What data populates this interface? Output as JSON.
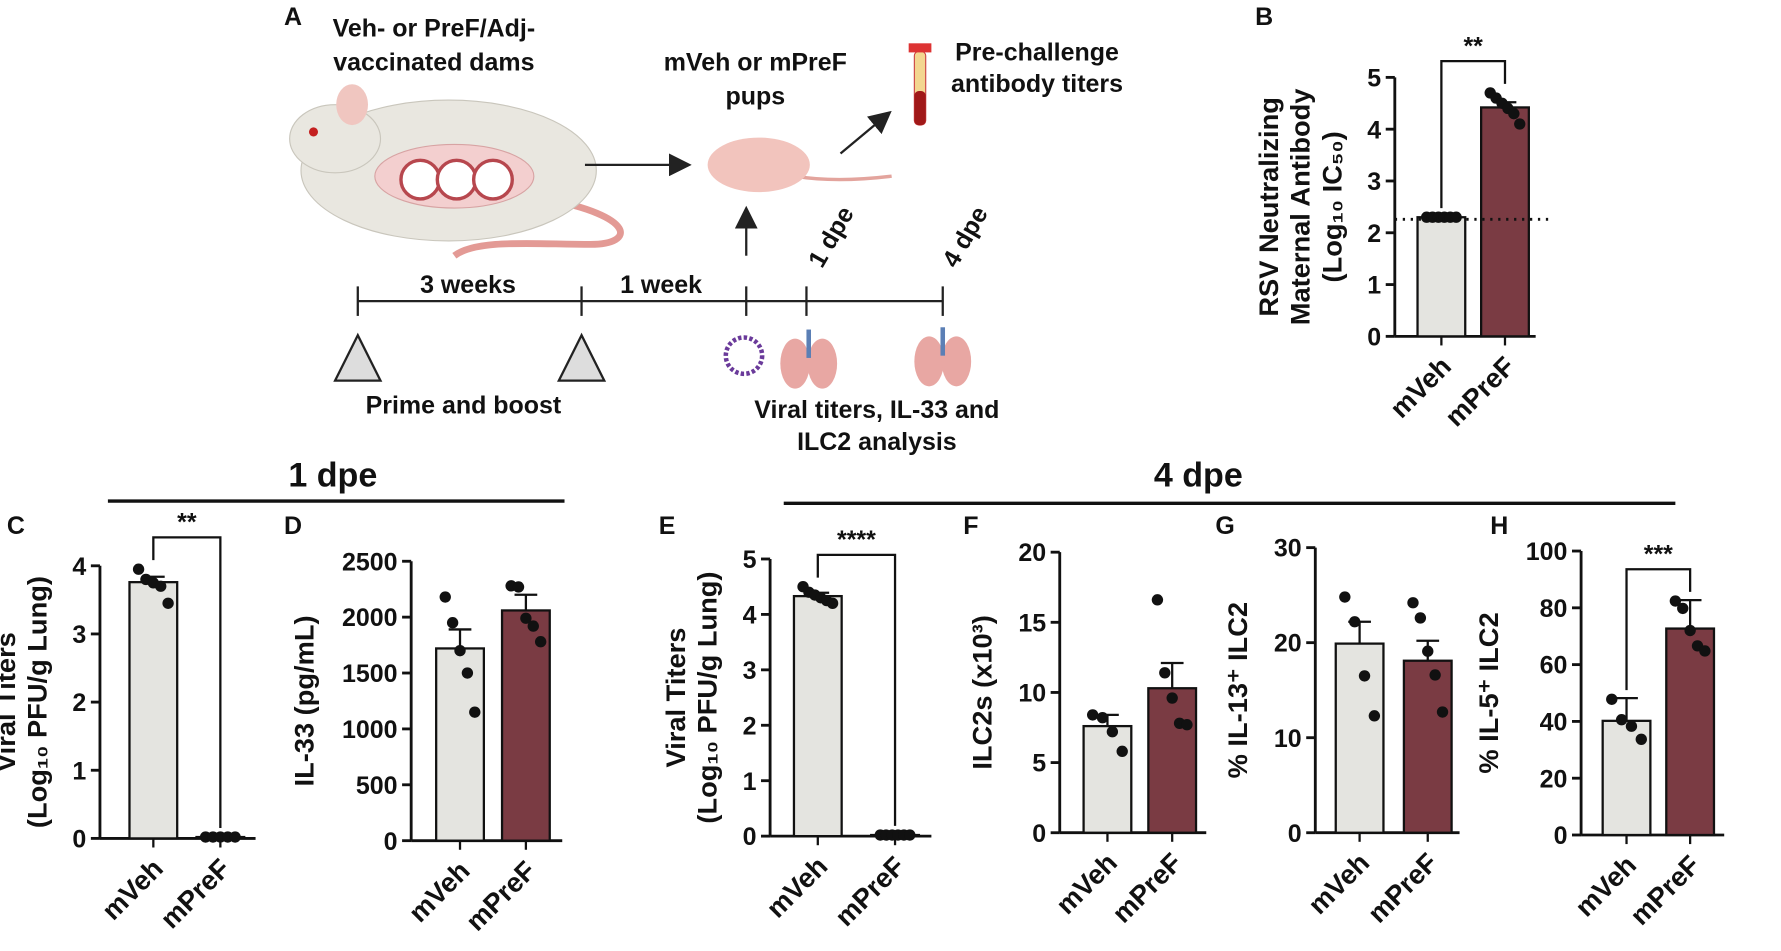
{
  "panel_a": {
    "label": "A",
    "dams": [
      "Veh- or PreF/Adj-",
      "vaccinated dams"
    ],
    "pups": [
      "mVeh or mPreF",
      "pups"
    ],
    "titers": [
      "Pre-challenge",
      "antibody titers"
    ],
    "interval_1": "3 weeks",
    "interval_2": "1 week",
    "day_1": "1 dpe",
    "day_4": "4 dpe",
    "vaccination": "Prime and boost",
    "analysis": [
      "Viral titers, IL-33 and",
      "ILC2 analysis"
    ]
  },
  "group_labels": [
    "1 dpe",
    "4 dpe"
  ],
  "chart_data": [
    {
      "type": "bar",
      "panel": "B",
      "ylabel": [
        "RSV Neutralizing",
        "Maternal Antibody",
        "(Log₁₀ IC₅₀)"
      ],
      "categories": [
        "mVeh",
        "mPreF"
      ],
      "values": [
        2.3,
        4.42
      ],
      "errors": [
        0.02,
        0.1
      ],
      "points": [
        [
          2.3,
          2.3,
          2.3,
          2.3,
          2.3,
          2.3
        ],
        [
          4.7,
          4.6,
          4.5,
          4.4,
          4.3,
          4.1
        ]
      ],
      "colors": [
        "#e4e4e0",
        "#7a3b43"
      ],
      "ylim": [
        0,
        5
      ],
      "yticks": [
        0,
        1,
        2,
        3,
        4,
        5
      ],
      "significance": "**",
      "hline": 2.26
    },
    {
      "type": "bar",
      "panel": "C",
      "ylabel": [
        "Viral Titers",
        "(Log₁₀ PFU/g Lung)"
      ],
      "categories": [
        "mVeh",
        "mPreF"
      ],
      "values": [
        3.76,
        0.02
      ],
      "errors": [
        0.08,
        0
      ],
      "points": [
        [
          3.95,
          3.8,
          3.75,
          3.7,
          3.45
        ],
        [
          0.02,
          0.02,
          0.02,
          0.02,
          0.02
        ]
      ],
      "colors": [
        "#e4e4e0",
        "#7a3b43"
      ],
      "ylim": [
        0,
        4
      ],
      "yticks": [
        0,
        1,
        2,
        3,
        4
      ],
      "significance": "**"
    },
    {
      "type": "bar",
      "panel": "D",
      "ylabel": [
        "IL-33 (pg/mL)"
      ],
      "categories": [
        "mVeh",
        "mPreF"
      ],
      "values": [
        1720,
        2060
      ],
      "errors": [
        170,
        140
      ],
      "points": [
        [
          2180,
          1950,
          1700,
          1500,
          1150
        ],
        [
          2280,
          2270,
          1990,
          1920,
          1780
        ]
      ],
      "colors": [
        "#e4e4e0",
        "#7a3b43"
      ],
      "ylim": [
        0,
        2500
      ],
      "yticks": [
        0,
        500,
        1000,
        1500,
        2000,
        2500
      ]
    },
    {
      "type": "bar",
      "panel": "E",
      "ylabel": [
        "Viral Titers",
        "(Log₁₀ PFU/g Lung)"
      ],
      "categories": [
        "mVeh",
        "mPreF"
      ],
      "values": [
        4.33,
        0.02
      ],
      "errors": [
        0.06,
        0
      ],
      "points": [
        [
          4.5,
          4.4,
          4.35,
          4.3,
          4.25,
          4.2
        ],
        [
          0.02,
          0.02,
          0.02,
          0.02,
          0.02,
          0.02
        ]
      ],
      "colors": [
        "#e4e4e0",
        "#7a3b43"
      ],
      "ylim": [
        0,
        5
      ],
      "yticks": [
        0,
        1,
        2,
        3,
        4,
        5
      ],
      "significance": "****"
    },
    {
      "type": "bar",
      "panel": "F",
      "ylabel": [
        "ILC2s (x10³)"
      ],
      "categories": [
        "mVeh",
        "mPreF"
      ],
      "values": [
        7.6,
        10.3
      ],
      "errors": [
        0.8,
        1.8
      ],
      "points": [
        [
          8.4,
          8.2,
          7.2,
          5.8
        ],
        [
          16.6,
          11.4,
          9.6,
          7.8,
          7.7
        ]
      ],
      "colors": [
        "#e4e4e0",
        "#7a3b43"
      ],
      "ylim": [
        0,
        20
      ],
      "yticks": [
        0,
        5,
        10,
        15,
        20
      ]
    },
    {
      "type": "bar",
      "panel": "G",
      "ylabel": [
        "% IL-13⁺ ILC2"
      ],
      "categories": [
        "mVeh",
        "mPreF"
      ],
      "values": [
        19.9,
        18.1
      ],
      "errors": [
        2.3,
        2.1
      ],
      "points": [
        [
          24.8,
          22.2,
          16.5,
          12.3
        ],
        [
          24.2,
          22.6,
          19.1,
          16.6,
          12.7
        ]
      ],
      "colors": [
        "#e4e4e0",
        "#7a3b43"
      ],
      "ylim": [
        0,
        30
      ],
      "yticks": [
        0,
        10,
        20,
        30
      ]
    },
    {
      "type": "bar",
      "panel": "H",
      "ylabel": [
        "% IL-5⁺ ILC2"
      ],
      "categories": [
        "mVeh",
        "mPreF"
      ],
      "values": [
        40.2,
        72.7
      ],
      "errors": [
        8,
        10
      ],
      "points": [
        [
          47.8,
          40.6,
          38.3,
          33.7
        ],
        [
          82.4,
          79.8,
          72,
          66.6,
          64.8
        ]
      ],
      "colors": [
        "#e4e4e0",
        "#7a3b43"
      ],
      "ylim": [
        0,
        100
      ],
      "yticks": [
        0,
        20,
        40,
        60,
        80,
        100
      ],
      "significance": "***"
    }
  ]
}
